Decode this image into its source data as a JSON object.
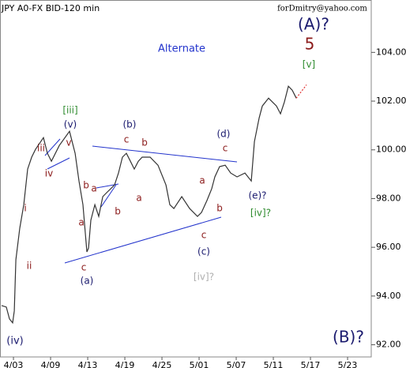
{
  "chart_data": {
    "type": "line",
    "title": "JPY A0-FX BID-120 min",
    "subtitle": "forDmitry@yahoo.com",
    "xlim": [
      -1.45,
      38.55
    ],
    "ylim": [
      91.5,
      106.15
    ],
    "xticks": [
      {
        "value": 0,
        "label": "4/03"
      },
      {
        "value": 4,
        "label": "4/09"
      },
      {
        "value": 8,
        "label": "4/13"
      },
      {
        "value": 12,
        "label": "4/19"
      },
      {
        "value": 16,
        "label": "4/25"
      },
      {
        "value": 20,
        "label": "5/01"
      },
      {
        "value": 24,
        "label": "5/07"
      },
      {
        "value": 28,
        "label": "5/11"
      },
      {
        "value": 32,
        "label": "5/17"
      },
      {
        "value": 36,
        "label": "5/23"
      }
    ],
    "yticks": [
      {
        "value": 92,
        "label": "92.00"
      },
      {
        "value": 94,
        "label": "94.00"
      },
      {
        "value": 96,
        "label": "96.00"
      },
      {
        "value": 98,
        "label": "98.00"
      },
      {
        "value": 100,
        "label": "100.00"
      },
      {
        "value": 102,
        "label": "102.00"
      },
      {
        "value": 104,
        "label": "104.00"
      }
    ],
    "series": [
      {
        "color": "#333333",
        "x": [
          -1.28,
          -0.77,
          -0.43,
          -0.09,
          0.09,
          0.26,
          0.68,
          1.11,
          1.53,
          1.96,
          2.38,
          3.23,
          3.66,
          4.09,
          4.94,
          6.04,
          6.64,
          7.06,
          7.49,
          7.91,
          8.09,
          8.34,
          8.77,
          9.19,
          9.62,
          10.04,
          10.47,
          10.89,
          11.32,
          11.74,
          12.17,
          12.6,
          13.02,
          13.45,
          13.87,
          14.72,
          15.57,
          16.43,
          16.85,
          17.28,
          18.13,
          18.98,
          19.83,
          20.26,
          20.85,
          21.36,
          21.7,
          22.21,
          22.81,
          23.4,
          24.09,
          24.94,
          25.62,
          25.96,
          26.47,
          26.81,
          27.49,
          28.34,
          28.77,
          29.19,
          29.62,
          30.04,
          30.47
        ],
        "values": [
          93.61,
          93.55,
          93.06,
          92.9,
          93.39,
          95.49,
          96.78,
          97.75,
          99.21,
          99.7,
          100.02,
          100.5,
          99.86,
          99.53,
          100.18,
          100.76,
          99.86,
          98.72,
          97.75,
          95.81,
          95.97,
          97.11,
          97.75,
          97.27,
          98.08,
          98.24,
          98.4,
          98.56,
          99.05,
          99.7,
          99.86,
          99.53,
          99.21,
          99.53,
          99.7,
          99.7,
          99.37,
          98.56,
          97.75,
          97.59,
          98.08,
          97.59,
          97.27,
          97.43,
          97.92,
          98.4,
          98.89,
          99.31,
          99.37,
          99.05,
          98.89,
          99.05,
          98.72,
          100.34,
          101.31,
          101.8,
          102.12,
          101.8,
          101.48,
          101.96,
          102.61,
          102.45,
          102.12
        ]
      },
      {
        "color": "#e03030",
        "style": "dotted",
        "x": [
          30.47,
          31.57
        ],
        "values": [
          102.12,
          102.67
        ]
      }
    ],
    "annotations": [
      {
        "text": "Alternate",
        "color": "#2233cc"
      },
      {
        "text": "(A)?",
        "color": "#1a1a6e"
      },
      {
        "text": "5",
        "color": "#8b1a1a"
      },
      {
        "text": "[v]",
        "color": "#2e8b2e"
      },
      {
        "text": "[iii]",
        "color": "#2e8b2e"
      },
      {
        "text": "(v)",
        "color": "#1a1a6e"
      },
      {
        "text": "iii",
        "color": "#8b1a1a"
      },
      {
        "text": "v",
        "color": "#8b1a1a"
      },
      {
        "text": "iv",
        "color": "#8b1a1a"
      },
      {
        "text": "i",
        "color": "#8b1a1a"
      },
      {
        "text": "ii",
        "color": "#8b1a1a"
      },
      {
        "text": "(iv)",
        "color": "#1a1a6e"
      },
      {
        "text": "(b)",
        "color": "#1a1a6e"
      },
      {
        "text": "c",
        "color": "#8b1a1a"
      },
      {
        "text": "b",
        "color": "#8b1a1a"
      },
      {
        "text": "b",
        "color": "#8b1a1a"
      },
      {
        "text": "a",
        "color": "#8b1a1a"
      },
      {
        "text": "b",
        "color": "#8b1a1a"
      },
      {
        "text": "a",
        "color": "#8b1a1a"
      },
      {
        "text": "c",
        "color": "#8b1a1a"
      },
      {
        "text": "(a)",
        "color": "#1a1a6e"
      },
      {
        "text": "a",
        "color": "#8b1a1a"
      },
      {
        "text": "(d)",
        "color": "#1a1a6e"
      },
      {
        "text": "c",
        "color": "#8b1a1a"
      },
      {
        "text": "a",
        "color": "#8b1a1a"
      },
      {
        "text": "b",
        "color": "#8b1a1a"
      },
      {
        "text": "c",
        "color": "#8b1a1a"
      },
      {
        "text": "(c)",
        "color": "#1a1a6e"
      },
      {
        "text": "(e)?",
        "color": "#1a1a6e"
      },
      {
        "text": "[iv]?",
        "color": "#2e8b2e"
      },
      {
        "text": "[iv]?",
        "color": "#b0b0b0"
      },
      {
        "text": "(B)?",
        "color": "#1a1a6e"
      }
    ]
  }
}
